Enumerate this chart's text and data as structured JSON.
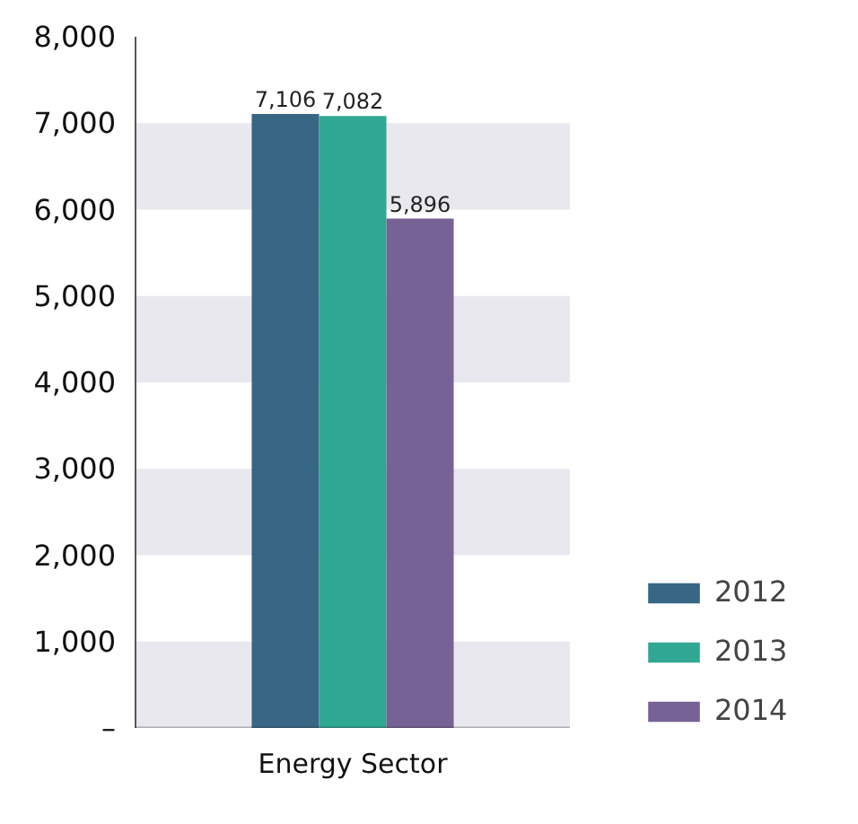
{
  "chart_data": {
    "type": "bar",
    "categories": [
      "Energy Sector"
    ],
    "series": [
      {
        "name": "2012",
        "color": "#386685",
        "values": [
          7106
        ]
      },
      {
        "name": "2013",
        "color": "#30a893",
        "values": [
          7082
        ]
      },
      {
        "name": "2014",
        "color": "#766294",
        "values": [
          5896
        ]
      }
    ],
    "ylim": [
      0,
      8000
    ],
    "yticks": [
      {
        "value": 0,
        "label": "–"
      },
      {
        "value": 1000,
        "label": "1,000"
      },
      {
        "value": 2000,
        "label": "2,000"
      },
      {
        "value": 3000,
        "label": "3,000"
      },
      {
        "value": 4000,
        "label": "4,000"
      },
      {
        "value": 5000,
        "label": "5,000"
      },
      {
        "value": 6000,
        "label": "6,000"
      },
      {
        "value": 7000,
        "label": "7,000"
      },
      {
        "value": 8000,
        "label": "8,000"
      }
    ],
    "bands": [
      {
        "axis": "y",
        "from": 0,
        "to": 1000,
        "color": "#e8e8ee"
      },
      {
        "axis": "y",
        "from": 2000,
        "to": 3000,
        "color": "#e8e8ee"
      },
      {
        "axis": "y",
        "from": 4000,
        "to": 5000,
        "color": "#e8e8ee"
      },
      {
        "axis": "y",
        "from": 6000,
        "to": 7000,
        "color": "#e8e8ee"
      }
    ],
    "value_labels": [
      "7,106",
      "7,082",
      "5,896"
    ],
    "grid": false,
    "legend": "bottom right"
  }
}
